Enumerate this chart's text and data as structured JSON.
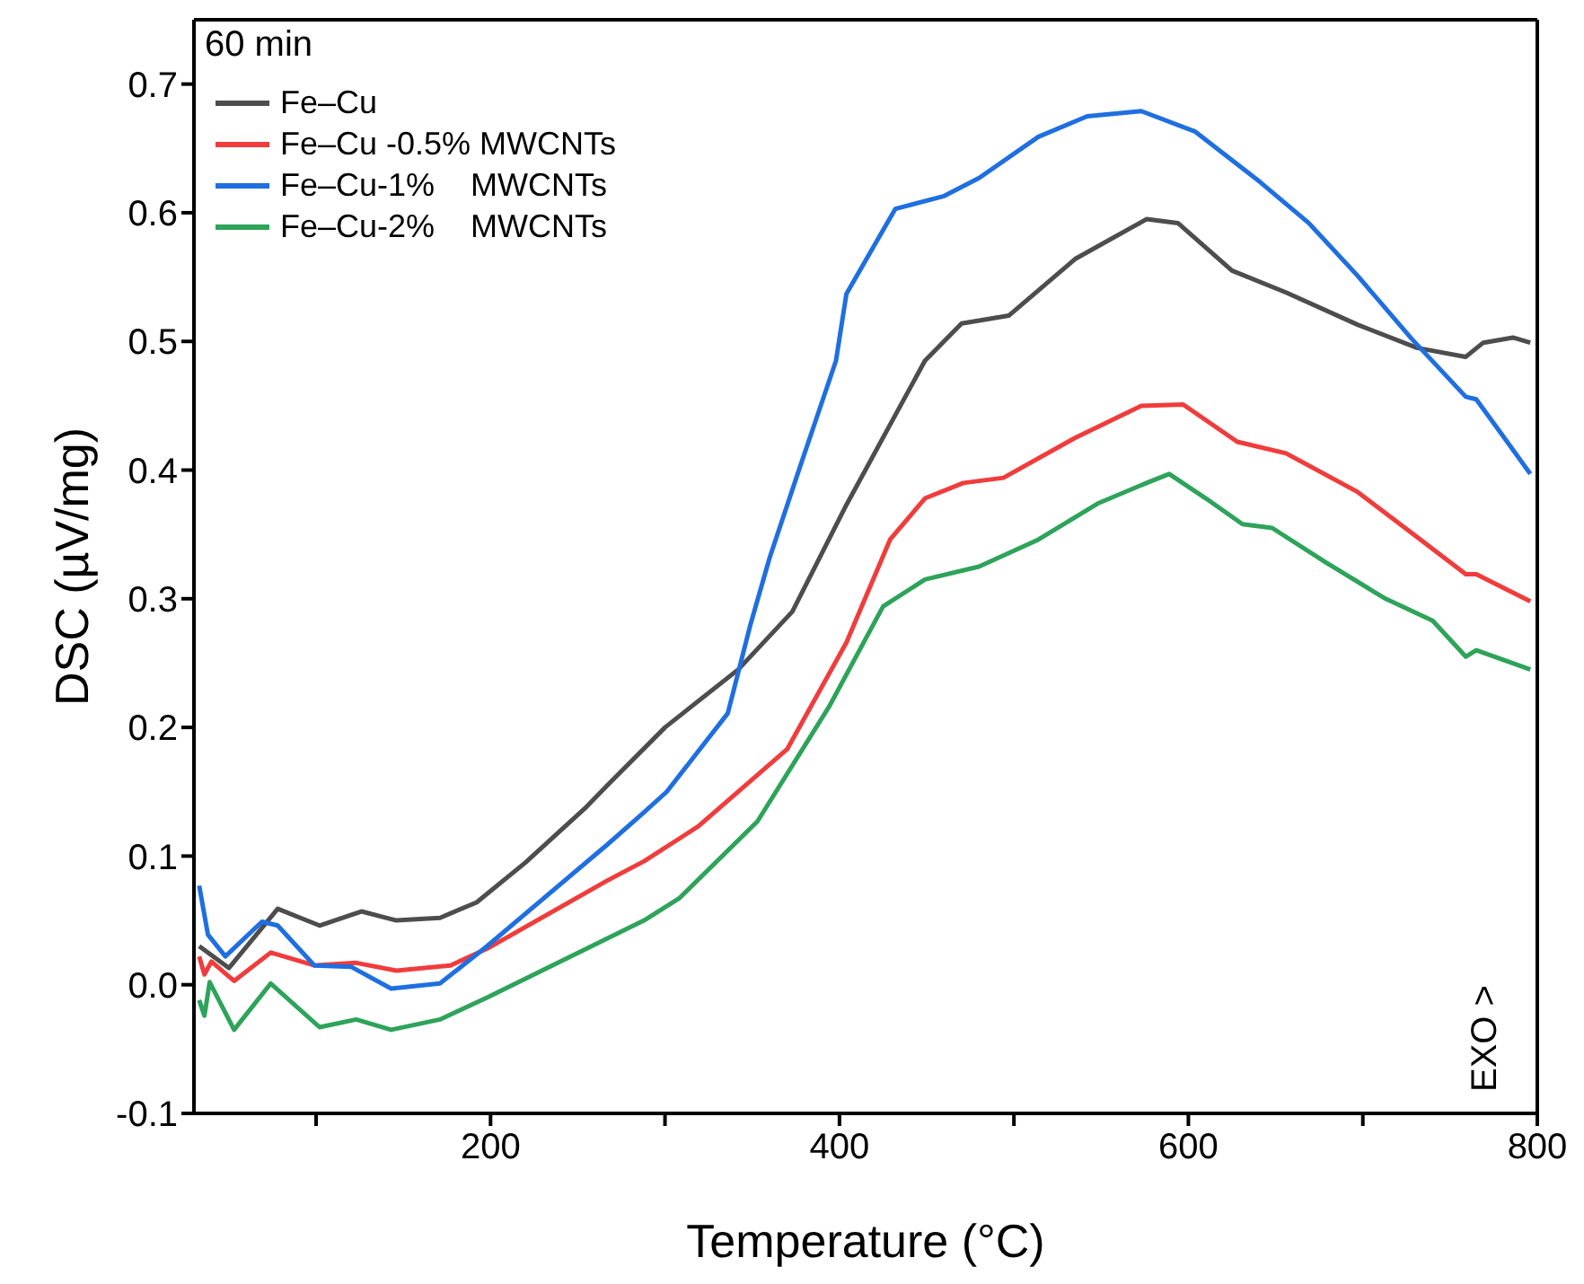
{
  "chart_data": {
    "type": "line",
    "xlabel": "Temperature (°C)",
    "ylabel": "DSC (µV/mg)",
    "annotations": [
      "60 min",
      "EXO >"
    ],
    "xlim": [
      30,
      800
    ],
    "xticks": [
      {
        "value": 100,
        "label": null
      },
      200,
      {
        "value": 300,
        "label": null
      },
      400,
      {
        "value": 500,
        "label": null
      },
      600,
      {
        "value": 700,
        "label": null
      },
      800
    ],
    "ylim": [
      -0.1,
      0.75
    ],
    "yticks": [
      -0.1,
      {
        "value": 0,
        "label": "0.0"
      },
      0.1,
      0.2,
      0.3,
      0.4,
      0.5,
      0.6,
      0.7
    ],
    "legend": "top left",
    "grid": false,
    "marker": "none",
    "line_style": "solid",
    "series": [
      {
        "name": "Fe–Cu",
        "color": "#4d4d4d",
        "x": [
          33,
          50,
          78,
          102,
          126,
          146,
          171,
          192,
          220,
          254,
          267,
          300,
          342,
          373,
          404,
          449,
          470,
          497,
          535,
          576,
          594,
          625,
          656,
          697,
          731,
          759,
          769,
          786,
          796
        ],
        "values": [
          0.03,
          0.013,
          0.059,
          0.046,
          0.057,
          0.05,
          0.052,
          0.064,
          0.095,
          0.137,
          0.155,
          0.2,
          0.245,
          0.29,
          0.373,
          0.485,
          0.514,
          0.52,
          0.564,
          0.595,
          0.592,
          0.555,
          0.538,
          0.513,
          0.495,
          0.488,
          0.499,
          0.503,
          0.499
        ]
      },
      {
        "name": "Fe–Cu -0.5% MWCNTs",
        "color": "#f03c3c",
        "x": [
          33,
          36,
          40,
          53,
          74,
          99,
          123,
          146,
          177,
          198,
          267,
          288,
          319,
          370,
          404,
          429,
          449,
          471,
          494,
          535,
          573,
          597,
          628,
          656,
          697,
          731,
          759,
          765,
          796
        ],
        "values": [
          0.022,
          0.008,
          0.018,
          0.003,
          0.025,
          0.015,
          0.017,
          0.011,
          0.015,
          0.028,
          0.081,
          0.096,
          0.123,
          0.183,
          0.266,
          0.346,
          0.378,
          0.39,
          0.394,
          0.425,
          0.45,
          0.451,
          0.422,
          0.413,
          0.383,
          0.348,
          0.319,
          0.319,
          0.298
        ]
      },
      {
        "name": "Fe–Cu-1%    MWCNTs",
        "color": "#1f6fe0",
        "x": [
          33,
          38,
          48,
          69,
          78,
          99,
          120,
          143,
          171,
          198,
          267,
          288,
          301,
          336,
          349,
          360,
          377,
          398,
          404,
          432,
          460,
          480,
          514,
          542,
          573,
          604,
          641,
          669,
          697,
          728,
          759,
          765,
          779,
          796
        ],
        "values": [
          0.077,
          0.039,
          0.022,
          0.049,
          0.046,
          0.015,
          0.014,
          -0.003,
          0.001,
          0.03,
          0.109,
          0.134,
          0.15,
          0.211,
          0.28,
          0.332,
          0.401,
          0.485,
          0.537,
          0.603,
          0.613,
          0.627,
          0.659,
          0.675,
          0.679,
          0.663,
          0.624,
          0.592,
          0.551,
          0.502,
          0.457,
          0.455,
          0.429,
          0.397
        ]
      },
      {
        "name": "Fe–Cu-2%    MWCNTs",
        "color": "#2ea35a",
        "x": [
          33,
          36,
          39,
          53,
          74,
          102,
          123,
          143,
          171,
          198,
          288,
          308,
          353,
          394,
          425,
          449,
          480,
          514,
          548,
          576,
          589,
          610,
          631,
          648,
          679,
          713,
          740,
          759,
          765,
          796
        ],
        "values": [
          -0.012,
          -0.024,
          0.002,
          -0.035,
          0.001,
          -0.033,
          -0.027,
          -0.035,
          -0.027,
          -0.01,
          0.05,
          0.067,
          0.127,
          0.216,
          0.294,
          0.315,
          0.325,
          0.346,
          0.374,
          0.39,
          0.397,
          0.378,
          0.358,
          0.355,
          0.328,
          0.3,
          0.283,
          0.255,
          0.26,
          0.245
        ]
      }
    ]
  }
}
